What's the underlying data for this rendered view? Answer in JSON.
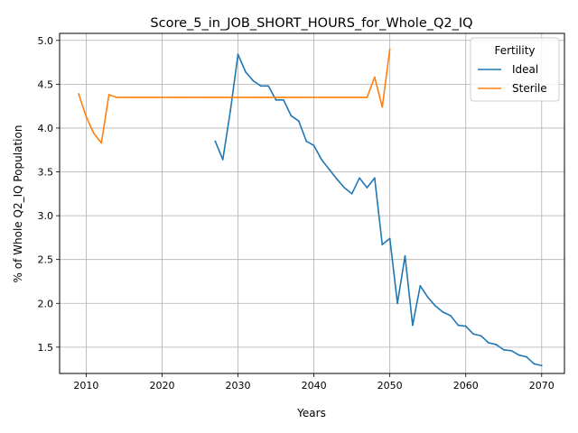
{
  "chart_data": {
    "type": "line",
    "title": "Score_5_in_JOB_SHORT_HOURS_for_Whole_Q2_IQ",
    "xlabel": "Years",
    "ylabel": "% of Whole Q2_IQ Population",
    "xlim": [
      2006.5,
      2073
    ],
    "ylim": [
      1.2,
      5.08
    ],
    "xticks": [
      2010,
      2020,
      2030,
      2040,
      2050,
      2060,
      2070
    ],
    "xtick_labels": [
      "2010",
      "2020",
      "2030",
      "2040",
      "2050",
      "2060",
      "2070"
    ],
    "yticks": [
      1.5,
      2.0,
      2.5,
      3.0,
      3.5,
      4.0,
      4.5,
      5.0
    ],
    "ytick_labels": [
      "1.5",
      "2.0",
      "2.5",
      "3.0",
      "3.5",
      "4.0",
      "4.5",
      "5.0"
    ],
    "grid": true,
    "legend": {
      "title": "Fertility",
      "position": "top-right"
    },
    "series": [
      {
        "name": "Ideal",
        "color": "#1f77b4",
        "x": [
          2027,
          2028,
          2029,
          2030,
          2031,
          2032,
          2033,
          2034,
          2035,
          2036,
          2037,
          2038,
          2039,
          2040,
          2041,
          2042,
          2043,
          2044,
          2045,
          2046,
          2047,
          2048,
          2049,
          2050,
          2051,
          2052,
          2053,
          2054,
          2055,
          2056,
          2057,
          2058,
          2059,
          2060,
          2061,
          2062,
          2063,
          2064,
          2065,
          2066,
          2067,
          2068,
          2069,
          2070
        ],
        "values": [
          3.85,
          3.64,
          4.2,
          4.84,
          4.64,
          4.54,
          4.48,
          4.48,
          4.32,
          4.32,
          4.14,
          4.08,
          3.85,
          3.8,
          3.64,
          3.53,
          3.42,
          3.32,
          3.25,
          3.43,
          3.32,
          3.43,
          2.67,
          2.74,
          2.0,
          2.54,
          1.75,
          2.2,
          2.07,
          1.97,
          1.9,
          1.86,
          1.75,
          1.74,
          1.65,
          1.63,
          1.55,
          1.53,
          1.47,
          1.46,
          1.41,
          1.39,
          1.31,
          1.29
        ]
      },
      {
        "name": "Sterile",
        "color": "#ff7f0e",
        "x": [
          2009,
          2010,
          2011,
          2012,
          2013,
          2014,
          2015,
          2016,
          2017,
          2018,
          2019,
          2020,
          2021,
          2022,
          2023,
          2024,
          2025,
          2026,
          2027,
          2028,
          2029,
          2030,
          2031,
          2032,
          2033,
          2034,
          2035,
          2036,
          2037,
          2038,
          2039,
          2040,
          2041,
          2042,
          2043,
          2044,
          2045,
          2046,
          2047,
          2048,
          2049,
          2050
        ],
        "values": [
          4.39,
          4.13,
          3.94,
          3.83,
          4.38,
          4.35,
          4.35,
          4.35,
          4.35,
          4.35,
          4.35,
          4.35,
          4.35,
          4.35,
          4.35,
          4.35,
          4.35,
          4.35,
          4.35,
          4.35,
          4.35,
          4.35,
          4.35,
          4.35,
          4.35,
          4.35,
          4.35,
          4.35,
          4.35,
          4.35,
          4.35,
          4.35,
          4.35,
          4.35,
          4.35,
          4.35,
          4.35,
          4.35,
          4.35,
          4.58,
          4.24,
          4.9
        ]
      }
    ]
  }
}
